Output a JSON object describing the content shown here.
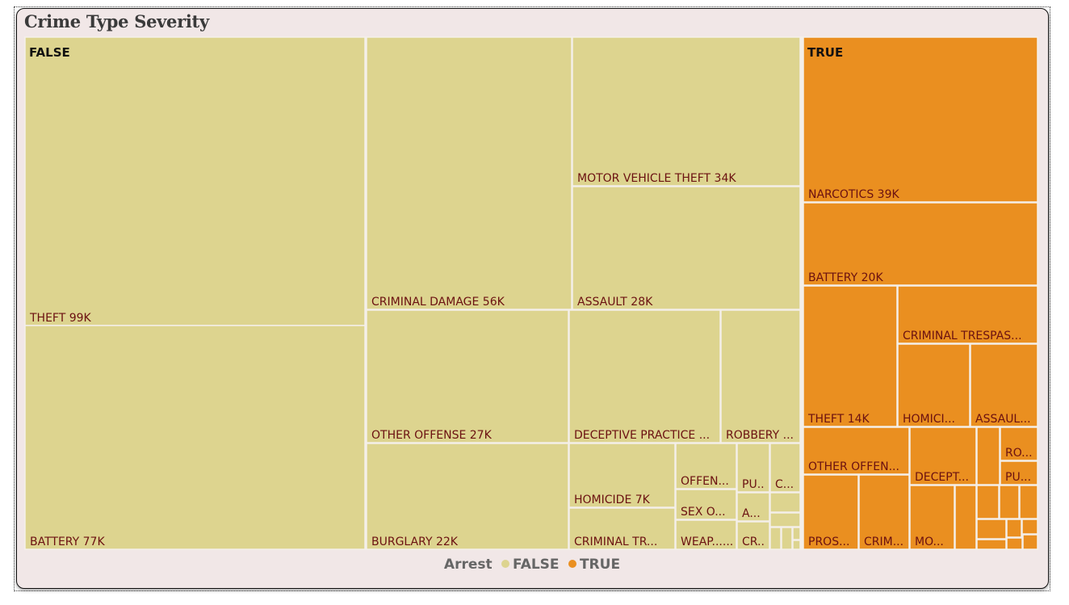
{
  "page": {
    "title": "Crime Type Severity"
  },
  "legend": {
    "title": "Arrest",
    "items": [
      {
        "label": "FALSE",
        "color": "#ddd48f"
      },
      {
        "label": "TRUE",
        "color": "#ea8f20"
      }
    ]
  },
  "chart_data": {
    "type": "treemap",
    "title": "Crime Type Severity",
    "legend_title": "Arrest",
    "legend_position": "bottom",
    "groups": [
      {
        "name": "FALSE",
        "color": "#ddd48f",
        "items": [
          {
            "label": "THEFT 99K",
            "category": "THEFT",
            "value": 99000
          },
          {
            "label": "BATTERY 77K",
            "category": "BATTERY",
            "value": 77000
          },
          {
            "label": "CRIMINAL DAMAGE 56K",
            "category": "CRIMINAL DAMAGE",
            "value": 56000
          },
          {
            "label": "MOTOR VEHICLE THEFT 34K",
            "category": "MOTOR VEHICLE THEFT",
            "value": 34000
          },
          {
            "label": "ASSAULT 28K",
            "category": "ASSAULT",
            "value": 28000
          },
          {
            "label": "OTHER OFFENSE 27K",
            "category": "OTHER OFFENSE",
            "value": 27000
          },
          {
            "label": "DECEPTIVE PRACTICE ...",
            "category": "DECEPTIVE PRACTICE",
            "value": 24000
          },
          {
            "label": "ROBBERY ...",
            "category": "ROBBERY",
            "value": 12500
          },
          {
            "label": "BURGLARY 22K",
            "category": "BURGLARY",
            "value": 22000
          },
          {
            "label": "HOMICIDE 7K",
            "category": "HOMICIDE",
            "value": 7000
          },
          {
            "label": "CRIMINAL TR...",
            "category": "CRIMINAL TRESPASS",
            "value": 5500
          },
          {
            "label": "OFFEN...",
            "category": "OFFENSE",
            "value": 3000
          },
          {
            "label": "SEX O...",
            "category": "SEX OFFENSE",
            "value": 2500
          },
          {
            "label": "WEAP......",
            "category": "WEAPONS",
            "value": 2200
          },
          {
            "label": "PU...",
            "category": "PU",
            "value": 1500
          },
          {
            "label": "A...",
            "category": "A",
            "value": 1200
          },
          {
            "label": "CR...",
            "category": "CR",
            "value": 1100
          },
          {
            "label": "C...",
            "category": "C",
            "value": 1000
          },
          {
            "label": "",
            "category": "",
            "value": 500
          },
          {
            "label": "",
            "category": "",
            "value": 400
          },
          {
            "label": "",
            "category": "",
            "value": 300
          },
          {
            "label": "",
            "category": "",
            "value": 250
          },
          {
            "label": "",
            "category": "",
            "value": 200
          },
          {
            "label": "",
            "category": "",
            "value": 150
          }
        ]
      },
      {
        "name": "TRUE",
        "color": "#ea8f20",
        "items": [
          {
            "label": "NARCOTICS 39K",
            "category": "NARCOTICS",
            "value": 39000
          },
          {
            "label": "BATTERY 20K",
            "category": "BATTERY",
            "value": 20000
          },
          {
            "label": "THEFT 14K",
            "category": "THEFT",
            "value": 14000
          },
          {
            "label": "CRIMINAL TRESPAS...",
            "category": "CRIMINAL TRESPASS",
            "value": 9000
          },
          {
            "label": "HOMICI...",
            "category": "HOMICIDE",
            "value": 6800
          },
          {
            "label": "ASSAUL...",
            "category": "ASSAULT",
            "value": 6300
          },
          {
            "label": "OTHER OFFEN...",
            "category": "OTHER OFFENSE",
            "value": 5000
          },
          {
            "label": "DECEPT...",
            "category": "DECEPTIVE PRACTICE",
            "value": 4200
          },
          {
            "label": "PROS...",
            "category": "PROSTITUTION",
            "value": 4100
          },
          {
            "label": "CRIM...",
            "category": "CRIMINAL DAMAGE",
            "value": 4000
          },
          {
            "label": "MO...",
            "category": "MOTOR VEHICLE THEFT",
            "value": 3300
          },
          {
            "label": "RO...",
            "category": "ROBBERY",
            "value": 1500
          },
          {
            "label": "PU...",
            "category": "PU",
            "value": 1400
          },
          {
            "label": "",
            "category": "",
            "value": 1300
          },
          {
            "label": "",
            "category": "",
            "value": 1200
          },
          {
            "label": "",
            "category": "",
            "value": 1000
          },
          {
            "label": "",
            "category": "",
            "value": 800
          },
          {
            "label": "",
            "category": "",
            "value": 700
          },
          {
            "label": "",
            "category": "",
            "value": 600
          },
          {
            "label": "",
            "category": "",
            "value": 500
          },
          {
            "label": "",
            "category": "",
            "value": 400
          },
          {
            "label": "",
            "category": "",
            "value": 300
          },
          {
            "label": "",
            "category": "",
            "value": 250
          },
          {
            "label": "",
            "category": "",
            "value": 200
          }
        ]
      }
    ]
  }
}
